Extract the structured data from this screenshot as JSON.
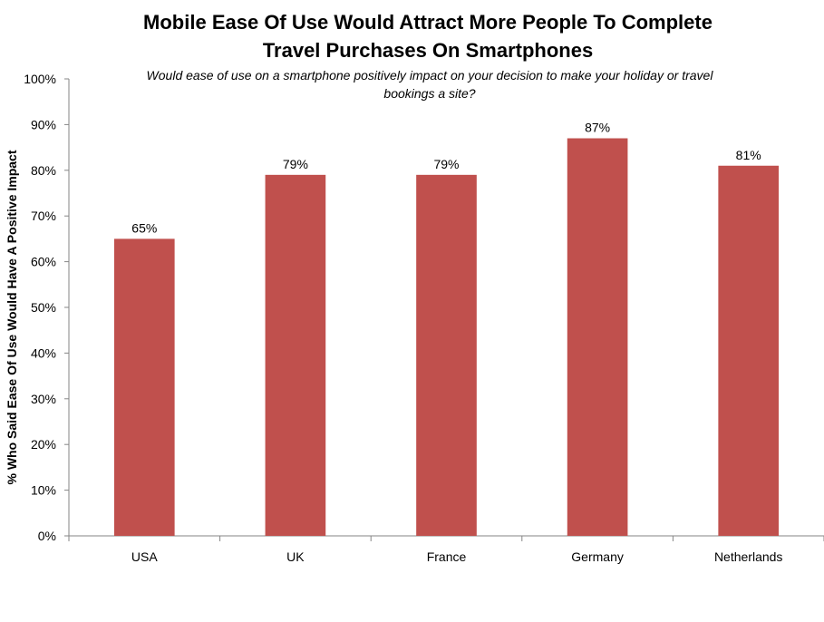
{
  "chart_data": {
    "type": "bar",
    "title_lines": [
      "Mobile Ease Of Use Would Attract More People To Complete",
      "Travel Purchases On Smartphones"
    ],
    "subtitle_lines": [
      "Would ease of use on a smartphone positively impact on your decision to make your holiday or travel",
      "bookings a site?"
    ],
    "xlabel": "",
    "ylabel": "% Who Said Ease Of Use Would Have A Positive Impact",
    "categories": [
      "USA",
      "UK",
      "France",
      "Germany",
      "Netherlands"
    ],
    "values": [
      65,
      79,
      79,
      87,
      81
    ],
    "value_labels": [
      "65%",
      "79%",
      "79%",
      "87%",
      "81%"
    ],
    "ylim": [
      0,
      100
    ],
    "yticks": [
      0,
      10,
      20,
      30,
      40,
      50,
      60,
      70,
      80,
      90,
      100
    ],
    "ytick_labels": [
      "0%",
      "10%",
      "20%",
      "30%",
      "40%",
      "50%",
      "60%",
      "70%",
      "80%",
      "90%",
      "100%"
    ],
    "grid": false,
    "legend": "none"
  },
  "colors": {
    "bar": "#c0504d",
    "axis": "#868686",
    "text": "#000000",
    "background": "#ffffff"
  }
}
